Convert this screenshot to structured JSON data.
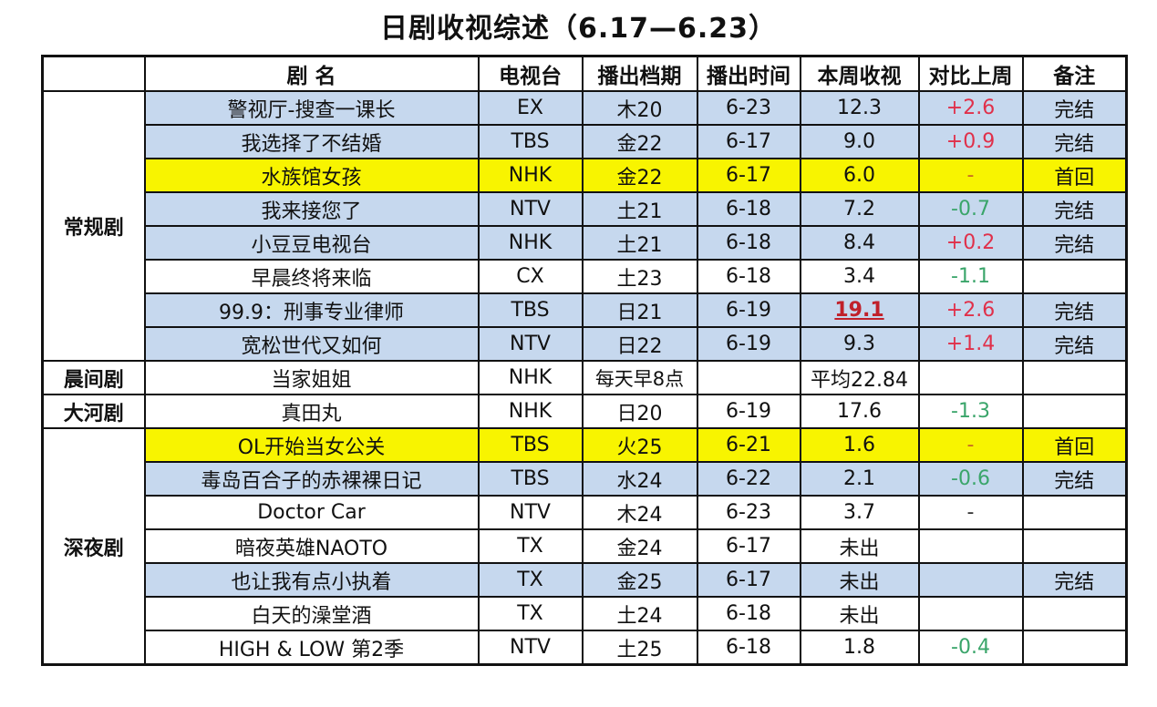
{
  "title": "日剧收视综述（6.17—6.23）",
  "colors": {
    "row_blue": "#c6d8ee",
    "row_yellow": "#f8f400",
    "row_white": "#ffffff",
    "increase": "#e0304a",
    "decrease": "#3aa56a",
    "highlight_value": "#c0202a"
  },
  "table": {
    "headers": [
      "",
      "剧 名",
      "电视台",
      "播出档期",
      "播出时间",
      "本周收视",
      "对比上周",
      "备注"
    ],
    "categories": [
      {
        "label": "常规剧",
        "rowspan": 8
      },
      {
        "label": "晨间剧",
        "rowspan": 1
      },
      {
        "label": "大河剧",
        "rowspan": 1
      },
      {
        "label": "深夜剧",
        "rowspan": 7
      }
    ],
    "rows": [
      {
        "name": "警视厅-搜查一课长",
        "station": "EX",
        "slot": "木20",
        "airdate": "6-23",
        "rating": "12.3",
        "change": "+2.6",
        "note": "完结",
        "style": "blue",
        "change_type": "up"
      },
      {
        "name": "我选择了不结婚",
        "station": "TBS",
        "slot": "金22",
        "airdate": "6-17",
        "rating": "9.0",
        "change": "+0.9",
        "note": "完结",
        "style": "blue",
        "change_type": "up"
      },
      {
        "name": "水族馆女孩",
        "station": "NHK",
        "slot": "金22",
        "airdate": "6-17",
        "rating": "6.0",
        "change": "-",
        "note": "首回",
        "style": "yellow",
        "change_type": "neutral"
      },
      {
        "name": "我来接您了",
        "station": "NTV",
        "slot": "土21",
        "airdate": "6-18",
        "rating": "7.2",
        "change": "-0.7",
        "note": "完结",
        "style": "blue",
        "change_type": "down"
      },
      {
        "name": "小豆豆电视台",
        "station": "NHK",
        "slot": "土21",
        "airdate": "6-18",
        "rating": "8.4",
        "change": "+0.2",
        "note": "完结",
        "style": "blue",
        "change_type": "up"
      },
      {
        "name": "早晨终将来临",
        "station": "CX",
        "slot": "土23",
        "airdate": "6-18",
        "rating": "3.4",
        "change": "-1.1",
        "note": "",
        "style": "white",
        "change_type": "down"
      },
      {
        "name": "99.9：刑事专业律师",
        "station": "TBS",
        "slot": "日21",
        "airdate": "6-19",
        "rating": "19.1",
        "change": "+2.6",
        "note": "完结",
        "style": "blue",
        "change_type": "up",
        "rating_highlight": true
      },
      {
        "name": "宽松世代又如何",
        "station": "NTV",
        "slot": "日22",
        "airdate": "6-19",
        "rating": "9.3",
        "change": "+1.4",
        "note": "完结",
        "style": "blue",
        "change_type": "up"
      },
      {
        "name": "当家姐姐",
        "station": "NHK",
        "slot": "每天早8点",
        "airdate": "",
        "rating": "平均22.84",
        "change": "",
        "note": "",
        "style": "white",
        "change_type": "none"
      },
      {
        "name": "真田丸",
        "station": "NHK",
        "slot": "日20",
        "airdate": "6-19",
        "rating": "17.6",
        "change": "-1.3",
        "note": "",
        "style": "white",
        "change_type": "down"
      },
      {
        "name": "OL开始当女公关",
        "station": "TBS",
        "slot": "火25",
        "airdate": "6-21",
        "rating": "1.6",
        "change": "-",
        "note": "首回",
        "style": "yellow",
        "change_type": "neutral"
      },
      {
        "name": "毒岛百合子的赤裸裸日记",
        "station": "TBS",
        "slot": "水24",
        "airdate": "6-22",
        "rating": "2.1",
        "change": "-0.6",
        "note": "完结",
        "style": "blue",
        "change_type": "down"
      },
      {
        "name": "Doctor Car",
        "station": "NTV",
        "slot": "木24",
        "airdate": "6-23",
        "rating": "3.7",
        "change": "-",
        "note": "",
        "style": "white",
        "change_type": "plain"
      },
      {
        "name": "暗夜英雄NAOTO",
        "station": "TX",
        "slot": "金24",
        "airdate": "6-17",
        "rating": "未出",
        "change": "",
        "note": "",
        "style": "white",
        "change_type": "none"
      },
      {
        "name": "也让我有点小执着",
        "station": "TX",
        "slot": "金25",
        "airdate": "6-17",
        "rating": "未出",
        "change": "",
        "note": "完结",
        "style": "blue",
        "change_type": "none"
      },
      {
        "name": "白天的澡堂酒",
        "station": "TX",
        "slot": "土24",
        "airdate": "6-18",
        "rating": "未出",
        "change": "",
        "note": "",
        "style": "white",
        "change_type": "none"
      },
      {
        "name": "HIGH & LOW 第2季",
        "station": "NTV",
        "slot": "土25",
        "airdate": "6-18",
        "rating": "1.8",
        "change": "-0.4",
        "note": "",
        "style": "white",
        "change_type": "down"
      }
    ]
  }
}
